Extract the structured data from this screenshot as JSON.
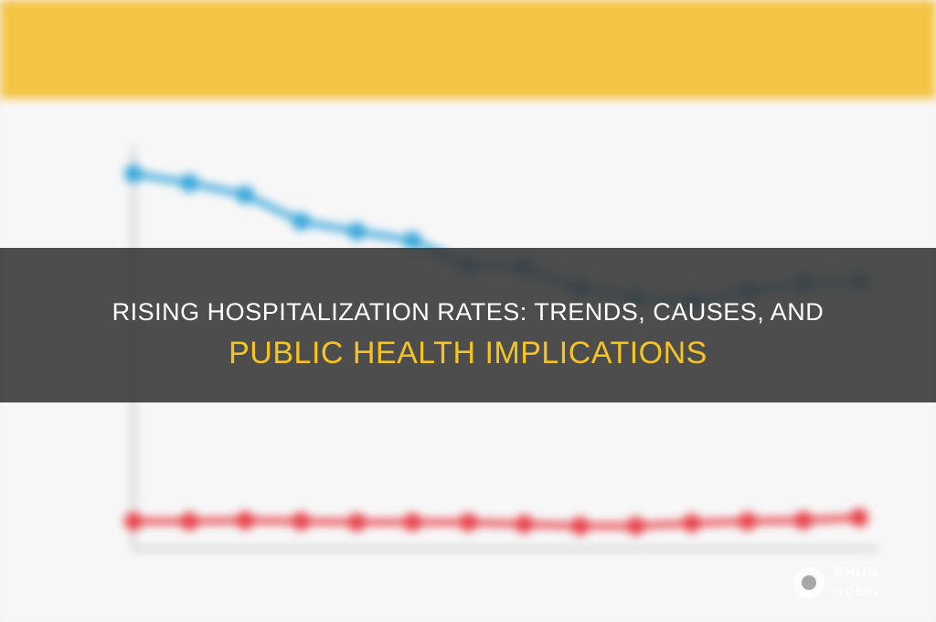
{
  "headline": {
    "line1": "RISING HOSPITALIZATION RATES: TRENDS, CAUSES, AND",
    "line2": "PUBLIC HEALTH IMPLICATIONS"
  },
  "background_figure": {
    "colors": {
      "banner": "#f5c445",
      "series_top": "#3aa8dc",
      "series_bottom": "#e8434b"
    }
  },
  "watermark": {
    "icon": "camera-aperture-icon",
    "text_line1": "SHUN",
    "text_line2": "HOSPI"
  }
}
